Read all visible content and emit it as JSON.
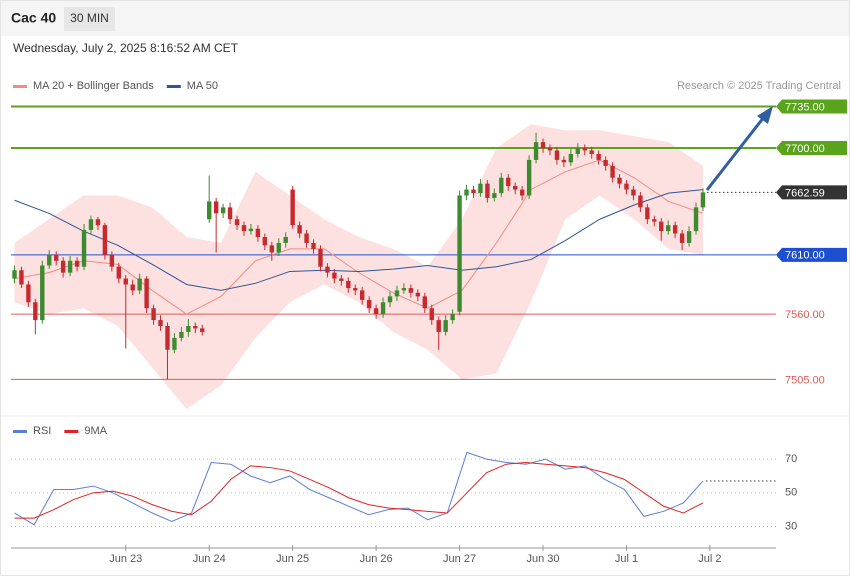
{
  "header": {
    "title": "Cac 40",
    "timeframe": "30 MIN",
    "timestamp": "Wednesday, July 2, 2025 8:16:52 AM CET",
    "source": "Research © 2025 Trading Central"
  },
  "chart_data": [
    {
      "type": "candlestick",
      "up_color": "#3d8b2f",
      "down_color": "#c62a2f",
      "open": [
        7590,
        7597,
        7585,
        7570,
        7555,
        7601,
        7610,
        7605,
        7595,
        7605,
        7600,
        7631,
        7640,
        7635,
        7610,
        7600,
        7590,
        7585,
        7580,
        7590,
        7565,
        7555,
        7550,
        7530,
        7540,
        7545,
        7550,
        7548,
        7640,
        7655,
        7645,
        7650,
        7640,
        7635,
        7630,
        7632,
        7625,
        7618,
        7612,
        7620,
        7665,
        7635,
        7628,
        7620,
        7615,
        7600,
        7595,
        7590,
        7588,
        7582,
        7580,
        7572,
        7565,
        7560,
        7570,
        7575,
        7580,
        7582,
        7578,
        7575,
        7565,
        7555,
        7545,
        7555,
        7562,
        7660,
        7665,
        7662,
        7670,
        7658,
        7662,
        7675,
        7668,
        7665,
        7660,
        7690,
        7705,
        7700,
        7698,
        7690,
        7688,
        7695,
        7700,
        7698,
        7695,
        7690,
        7685,
        7675,
        7670,
        7665,
        7660,
        7650,
        7640,
        7638,
        7630,
        7635,
        7628,
        7620,
        7630,
        7650
      ],
      "high": [
        7601,
        7600,
        7588,
        7573,
        7605,
        7614,
        7613,
        7608,
        7609,
        7608,
        7636,
        7643,
        7642,
        7637,
        7613,
        7603,
        7593,
        7589,
        7594,
        7592,
        7568,
        7559,
        7553,
        7544,
        7549,
        7556,
        7553,
        7551,
        7677,
        7658,
        7653,
        7654,
        7643,
        7638,
        7636,
        7635,
        7628,
        7621,
        7624,
        7629,
        7668,
        7638,
        7631,
        7623,
        7618,
        7603,
        7598,
        7593,
        7591,
        7585,
        7583,
        7575,
        7568,
        7574,
        7579,
        7584,
        7586,
        7585,
        7581,
        7578,
        7568,
        7558,
        7559,
        7564,
        7664,
        7669,
        7668,
        7674,
        7673,
        7666,
        7679,
        7678,
        7671,
        7668,
        7694,
        7713,
        7708,
        7703,
        7701,
        7693,
        7699,
        7704,
        7703,
        7701,
        7698,
        7693,
        7688,
        7678,
        7673,
        7668,
        7663,
        7653,
        7643,
        7641,
        7639,
        7638,
        7631,
        7634,
        7654,
        7666
      ],
      "low": [
        7586,
        7582,
        7566,
        7543,
        7552,
        7598,
        7601,
        7591,
        7592,
        7596,
        7597,
        7628,
        7631,
        7606,
        7596,
        7586,
        7531,
        7576,
        7577,
        7561,
        7551,
        7546,
        7505,
        7527,
        7537,
        7541,
        7544,
        7542,
        7637,
        7612,
        7641,
        7636,
        7631,
        7626,
        7627,
        7621,
        7614,
        7605,
        7609,
        7616,
        7632,
        7624,
        7616,
        7611,
        7596,
        7591,
        7586,
        7584,
        7578,
        7576,
        7568,
        7561,
        7556,
        7557,
        7566,
        7571,
        7577,
        7574,
        7571,
        7561,
        7551,
        7530,
        7542,
        7552,
        7559,
        7656,
        7658,
        7659,
        7654,
        7655,
        7659,
        7664,
        7661,
        7656,
        7657,
        7687,
        7696,
        7694,
        7686,
        7684,
        7685,
        7692,
        7694,
        7691,
        7686,
        7681,
        7671,
        7666,
        7661,
        7656,
        7646,
        7636,
        7634,
        7622,
        7627,
        7624,
        7614,
        7617,
        7627,
        7647
      ],
      "close": [
        7597,
        7585,
        7570,
        7555,
        7601,
        7610,
        7605,
        7595,
        7605,
        7600,
        7631,
        7640,
        7635,
        7610,
        7600,
        7590,
        7585,
        7580,
        7590,
        7565,
        7555,
        7550,
        7530,
        7540,
        7545,
        7550,
        7548,
        7545,
        7655,
        7645,
        7650,
        7640,
        7635,
        7630,
        7632,
        7625,
        7618,
        7612,
        7620,
        7625,
        7635,
        7628,
        7620,
        7615,
        7600,
        7595,
        7590,
        7588,
        7582,
        7580,
        7572,
        7565,
        7560,
        7570,
        7575,
        7580,
        7582,
        7578,
        7575,
        7565,
        7555,
        7545,
        7555,
        7560,
        7660,
        7665,
        7662,
        7670,
        7658,
        7662,
        7675,
        7668,
        7665,
        7660,
        7690,
        7705,
        7700,
        7698,
        7690,
        7688,
        7695,
        7700,
        7698,
        7695,
        7690,
        7685,
        7675,
        7670,
        7665,
        7660,
        7650,
        7640,
        7638,
        7630,
        7635,
        7628,
        7620,
        7630,
        7650,
        7662.59
      ],
      "series": [
        {
          "name": "MA 20 + Bollinger Bands",
          "color": "#f28b82",
          "band_color": "#fde0e0",
          "values": [
            7590,
            7595,
            7605,
            7602,
            7580,
            7560,
            7575,
            7605,
            7615,
            7615,
            7595,
            7578,
            7565,
            7580,
            7620,
            7665,
            7680,
            7690,
            7675,
            7655,
            7645
          ],
          "upper": [
            7620,
            7640,
            7660,
            7660,
            7650,
            7625,
            7620,
            7680,
            7660,
            7640,
            7625,
            7615,
            7600,
            7640,
            7700,
            7720,
            7715,
            7715,
            7710,
            7705,
            7685
          ],
          "lower": [
            7570,
            7560,
            7565,
            7550,
            7515,
            7480,
            7500,
            7540,
            7570,
            7585,
            7570,
            7545,
            7530,
            7505,
            7510,
            7570,
            7640,
            7660,
            7640,
            7615,
            7610
          ]
        },
        {
          "name": "MA 50",
          "color": "#2f5597",
          "values": [
            7656,
            7645,
            7630,
            7618,
            7602,
            7585,
            7580,
            7586,
            7596,
            7597,
            7596,
            7598,
            7601,
            7597,
            7600,
            7606,
            7622,
            7640,
            7652,
            7662,
            7665
          ]
        }
      ],
      "levels": [
        {
          "value": 7735,
          "label": "7735.00",
          "color": "#5aa31c",
          "boxed": true
        },
        {
          "value": 7700,
          "label": "7700.00",
          "color": "#5aa31c",
          "boxed": true
        },
        {
          "value": 7610,
          "label": "7610.00",
          "color": "#1f4fd1",
          "boxed": true
        },
        {
          "value": 7560,
          "label": "7560.00",
          "color": "#e05a5a",
          "boxed": false
        },
        {
          "value": 7505,
          "label": "7505.00",
          "color": "#e05a5a",
          "boxed": false
        }
      ],
      "last_price": {
        "value": 7662.59,
        "color": "#333333"
      },
      "xlim": [
        -0.5,
        109.5
      ],
      "ylim": [
        7475,
        7770
      ],
      "xticks": [
        {
          "value": 16,
          "label": "Jun 23"
        },
        {
          "value": 28,
          "label": "Jun 24"
        },
        {
          "value": 40,
          "label": "Jun 25"
        },
        {
          "value": 52,
          "label": "Jun 26"
        },
        {
          "value": 64,
          "label": "Jun 27"
        },
        {
          "value": 76,
          "label": "Jun 30"
        },
        {
          "value": 88,
          "label": "Jul 1"
        },
        {
          "value": 100,
          "label": "Jul 2"
        }
      ]
    },
    {
      "type": "line",
      "series": [
        {
          "name": "RSI",
          "color": "#5b7fd6",
          "values": [
            38,
            31,
            52,
            52,
            54,
            50,
            44,
            38,
            33,
            38,
            68,
            67,
            60,
            56,
            60,
            52,
            47,
            42,
            37,
            40,
            41,
            34,
            38,
            74,
            70,
            68,
            67,
            70,
            64,
            66,
            58,
            52,
            36,
            39,
            44,
            57
          ]
        },
        {
          "name": "9MA",
          "color": "#e02222",
          "values": [
            35,
            35,
            40,
            46,
            50,
            51,
            48,
            43,
            39,
            37,
            45,
            58,
            66,
            65,
            63,
            58,
            53,
            47,
            43,
            41,
            40,
            39,
            38,
            50,
            62,
            67,
            68,
            67,
            66,
            65,
            62,
            58,
            50,
            42,
            38,
            44
          ]
        }
      ],
      "ylim": [
        19,
        79
      ],
      "yticks": [
        30,
        50,
        70
      ],
      "grid": true
    }
  ]
}
